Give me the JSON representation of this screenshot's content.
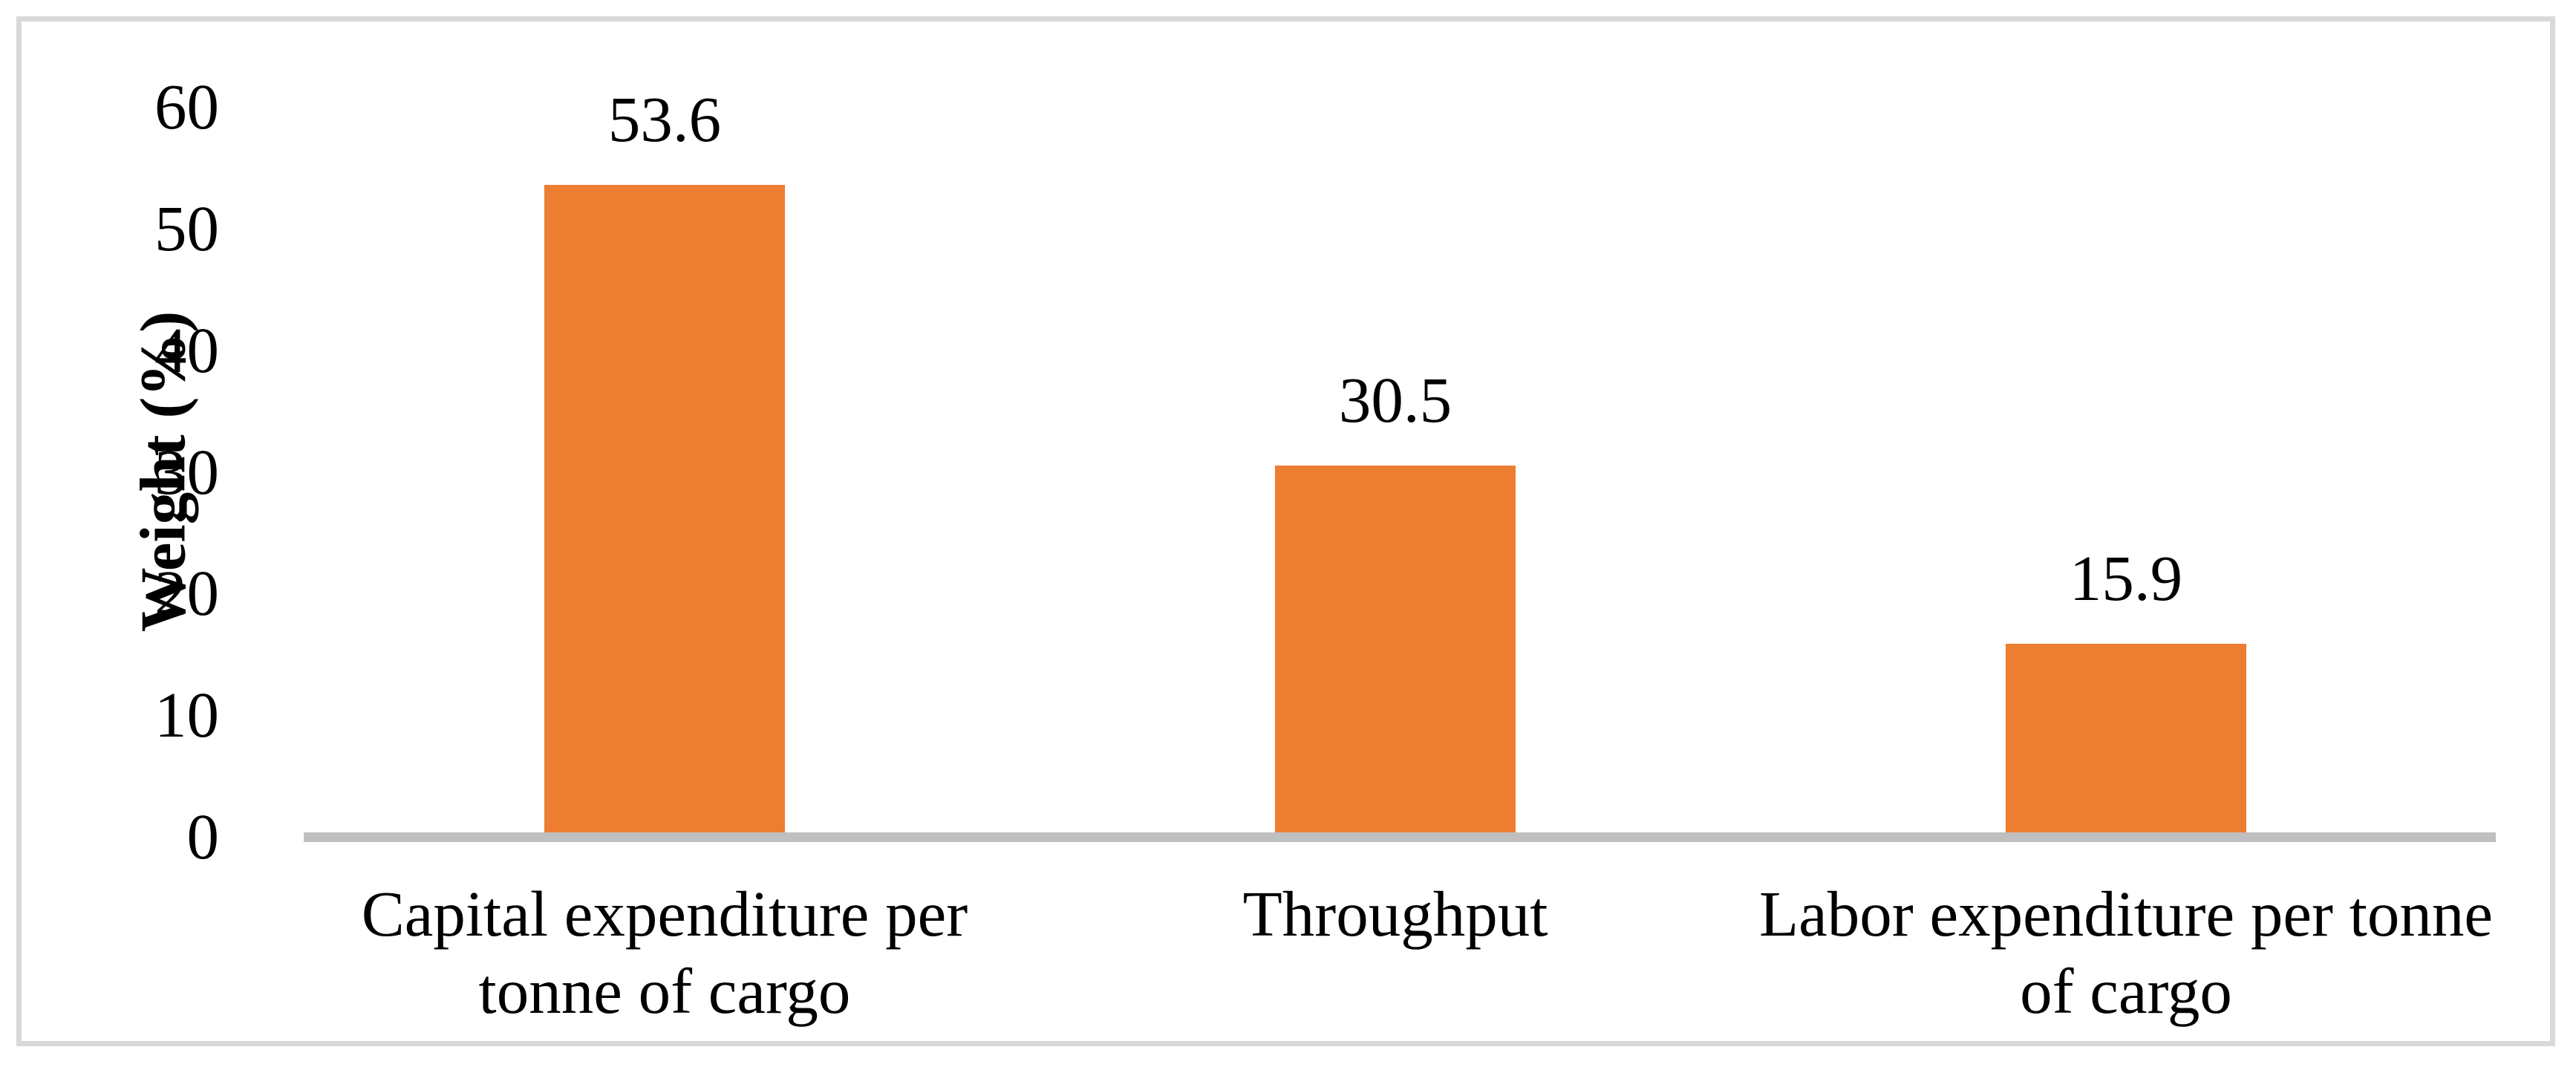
{
  "figure": {
    "background": "#ffffff",
    "frame_border_color": "#d9d9d9"
  },
  "chart_data": {
    "type": "bar",
    "title": "",
    "categories": [
      "Capital expenditure per tonne of cargo",
      "Throughput",
      "Labor expenditure per tonne of cargo"
    ],
    "values": [
      53.6,
      30.5,
      15.9
    ],
    "data_labels": [
      "53.6",
      "30.5",
      "15.9"
    ],
    "xlabel": "",
    "ylabel": "Weight (%)",
    "ylim": [
      0,
      60
    ],
    "yticks": [
      0,
      10,
      20,
      30,
      40,
      50,
      60
    ],
    "grid": false,
    "legend": "none",
    "bar_color": "#ed7d31",
    "axis_line_color": "#bfbfbf",
    "text_color": "#000000"
  }
}
